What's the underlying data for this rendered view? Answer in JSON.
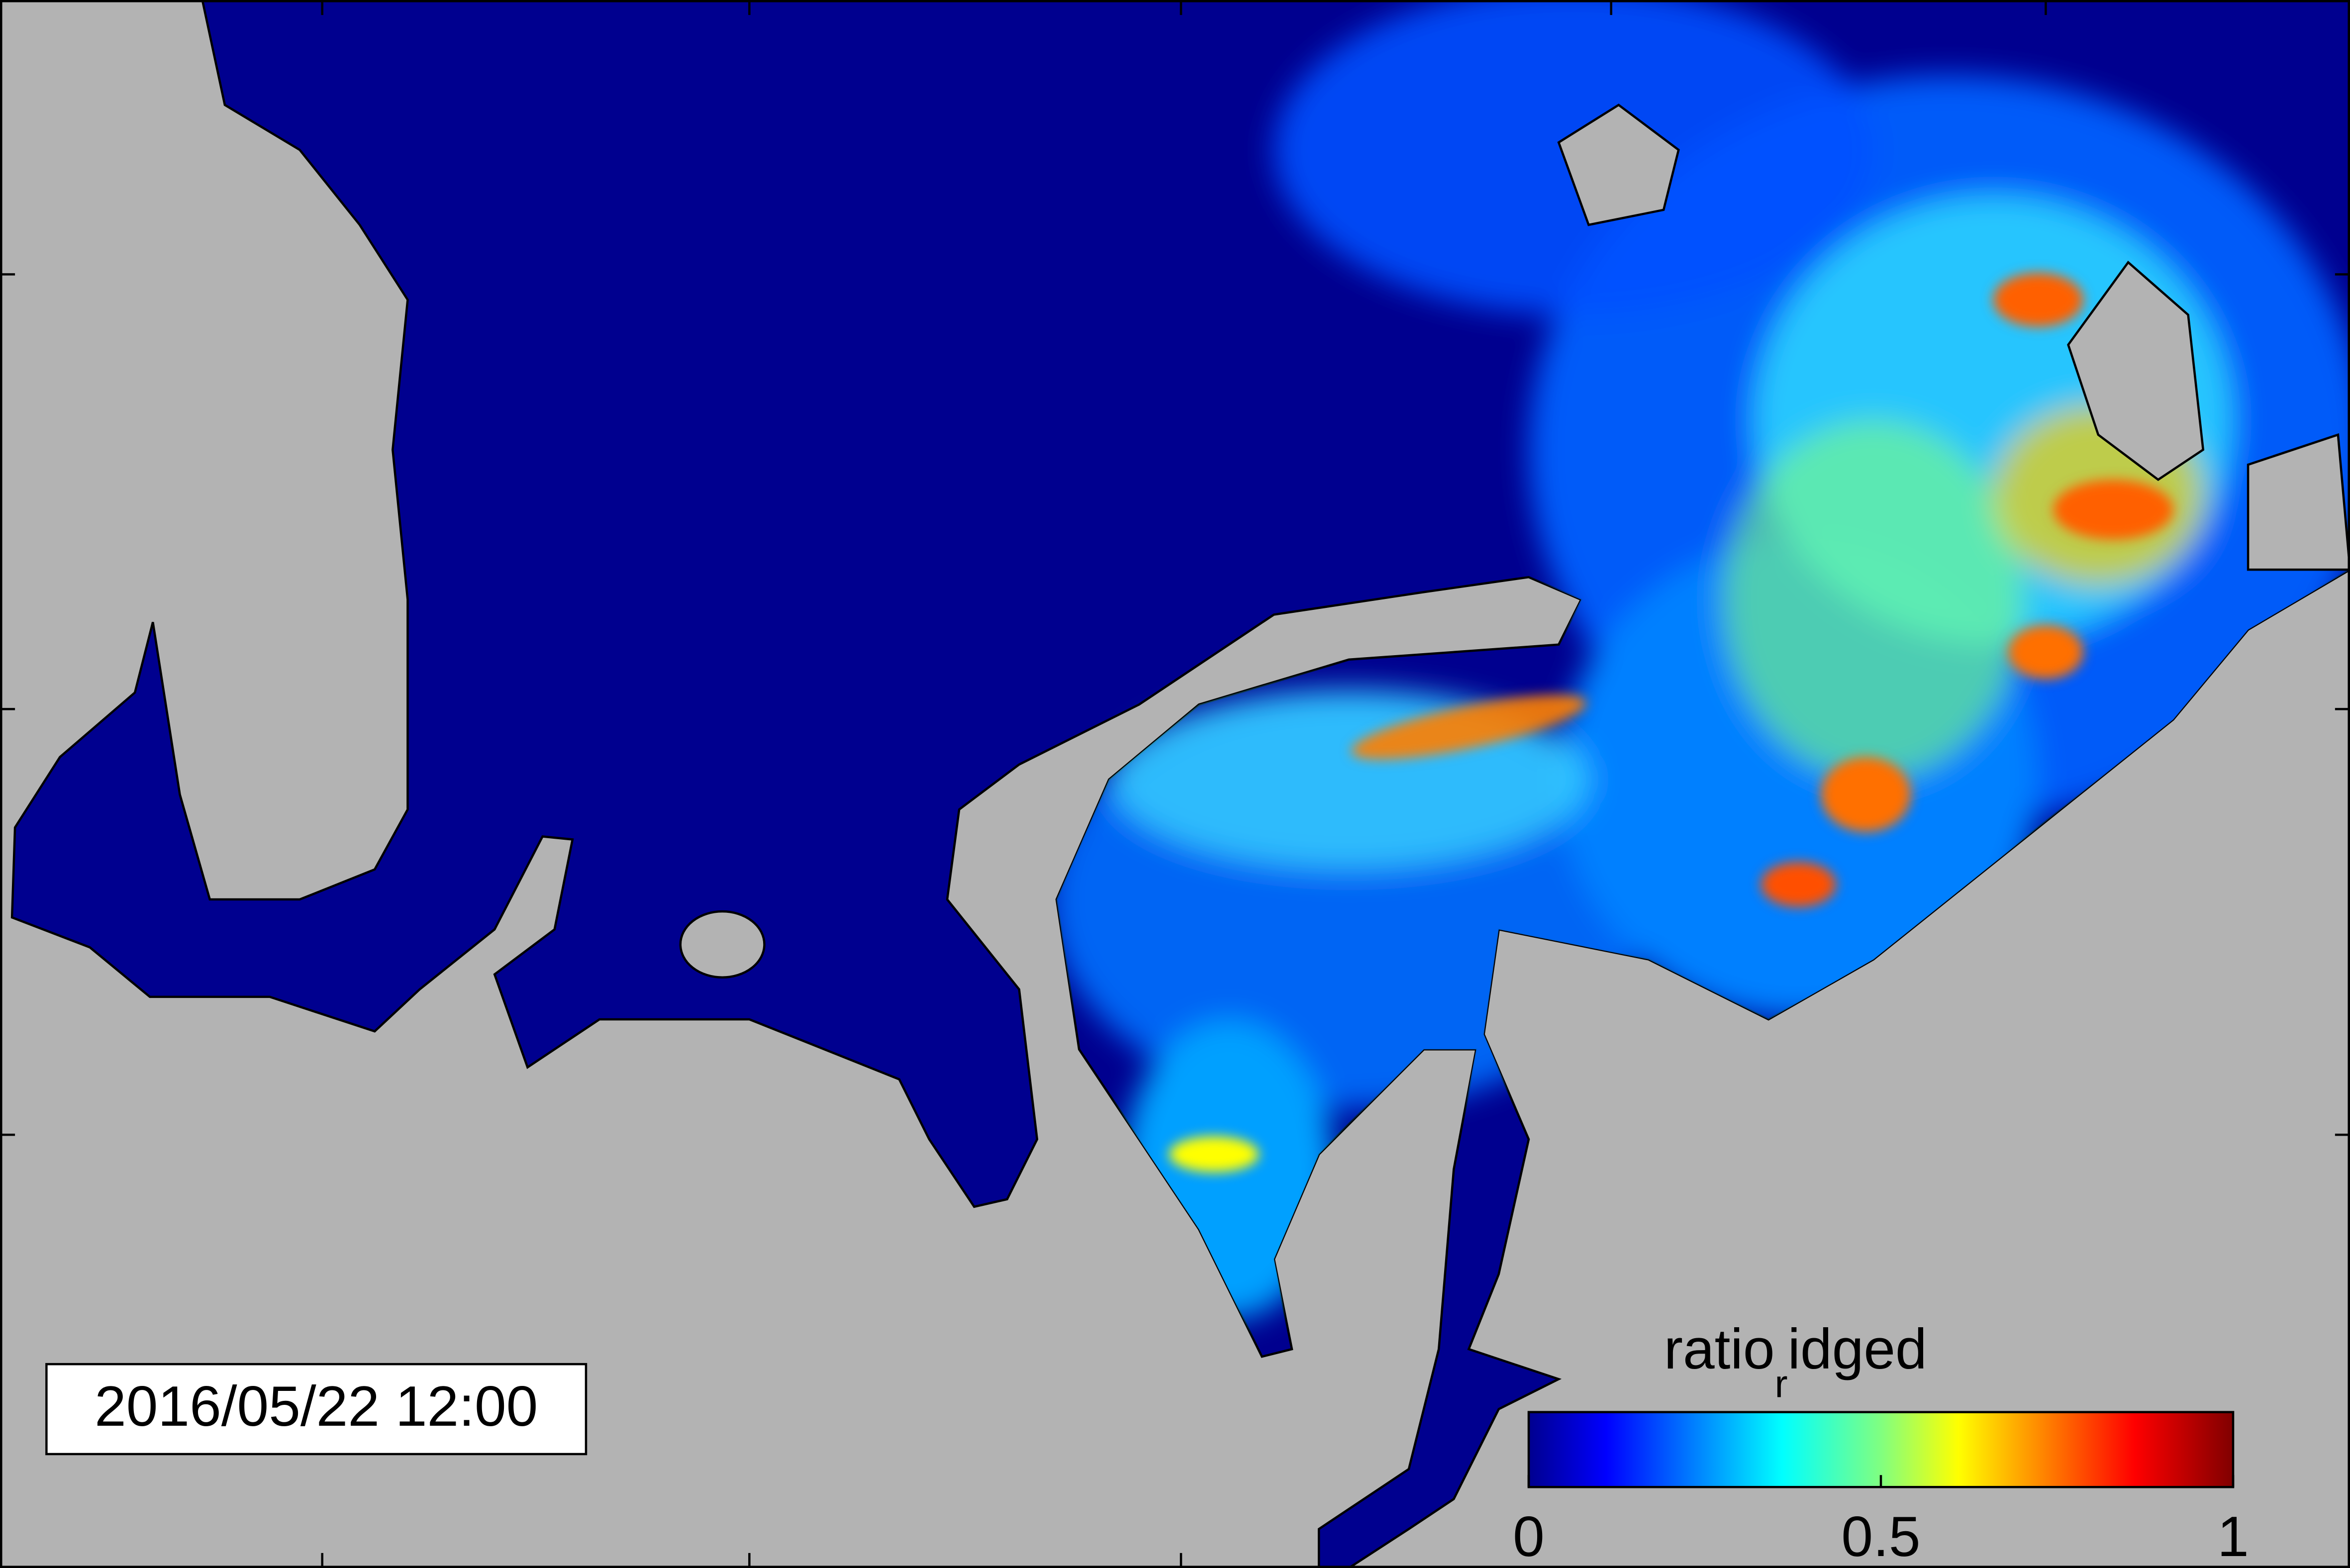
{
  "timestamp": "2016/05/22 12:00",
  "colorbar": {
    "label_main": "ratio",
    "label_sub": "r",
    "label_rest": "idged",
    "clim": [
      0,
      1
    ],
    "ticks": [
      0,
      0.5,
      1
    ]
  }
}
